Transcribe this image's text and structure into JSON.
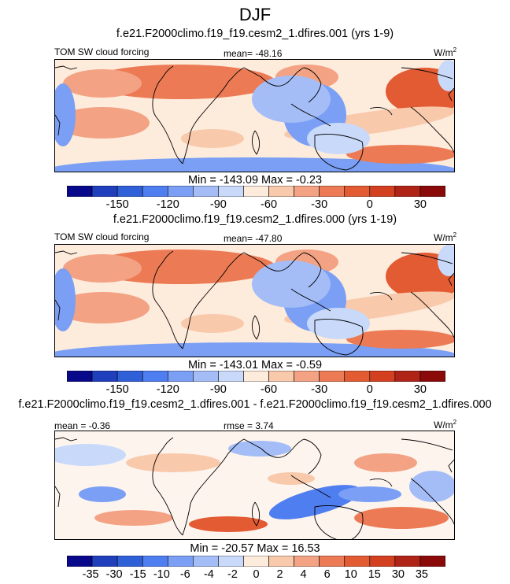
{
  "figure_title": "DJF",
  "colors": {
    "scale": [
      "#08088a",
      "#1f3fbd",
      "#3060d8",
      "#4f7ef0",
      "#7a9ff4",
      "#a4bdf7",
      "#c9d9fa",
      "#fdebdc",
      "#f9c9ab",
      "#f3a283",
      "#ec7b55",
      "#e25b33",
      "#d2401f",
      "#b02418",
      "#8a0a0a"
    ]
  },
  "chart_data": [
    {
      "type": "heatmap",
      "title": "f.e21.F2000climo.f19_f19.cesm2_1.dfires.001 (yrs 1-9)",
      "variable": "TOM SW cloud forcing",
      "mean_label": "mean= -48.16",
      "units": "W/m",
      "units_sup": "2",
      "mean": -48.16,
      "min": -143.09,
      "max": -0.23,
      "minmax_label": "Min = -143.09 Max =  -0.23",
      "colorbar_levels": [
        -165,
        -150,
        -135,
        -120,
        -105,
        -90,
        -75,
        -60,
        -45,
        -30,
        -15,
        0,
        15,
        30,
        45
      ],
      "colorbar_tick_labels": [
        "-150",
        "-120",
        "-90",
        "-60",
        "-30",
        "0",
        "30"
      ]
    },
    {
      "type": "heatmap",
      "title": "f.e21.F2000climo.f19_f19.cesm2_1.dfires.000 (yrs 1-19)",
      "variable": "TOM SW cloud forcing",
      "mean_label": "mean= -47.80",
      "units": "W/m",
      "units_sup": "2",
      "mean": -47.8,
      "min": -143.01,
      "max": -0.59,
      "minmax_label": "Min = -143.01 Max =  -0.59",
      "colorbar_levels": [
        -165,
        -150,
        -135,
        -120,
        -105,
        -90,
        -75,
        -60,
        -45,
        -30,
        -15,
        0,
        15,
        30,
        45
      ],
      "colorbar_tick_labels": [
        "-150",
        "-120",
        "-90",
        "-60",
        "-30",
        "0",
        "30"
      ]
    },
    {
      "type": "heatmap",
      "title": "f.e21.F2000climo.f19_f19.cesm2_1.dfires.001 - f.e21.F2000climo.f19_f19.cesm2_1.dfires.000",
      "mean_label": "mean =  -0.36",
      "rmse_label": "rmse =   3.74",
      "units": "W/m",
      "units_sup": "2",
      "mean": -0.36,
      "rmse": 3.74,
      "min": -20.57,
      "max": 16.53,
      "minmax_label": "Min = -20.57 Max =  16.53",
      "colorbar_tick_labels": [
        "-35",
        "-30",
        "-15",
        "-10",
        "-6",
        "-4",
        "-2",
        "0",
        "2",
        "4",
        "6",
        "10",
        "15",
        "30",
        "35"
      ]
    }
  ]
}
